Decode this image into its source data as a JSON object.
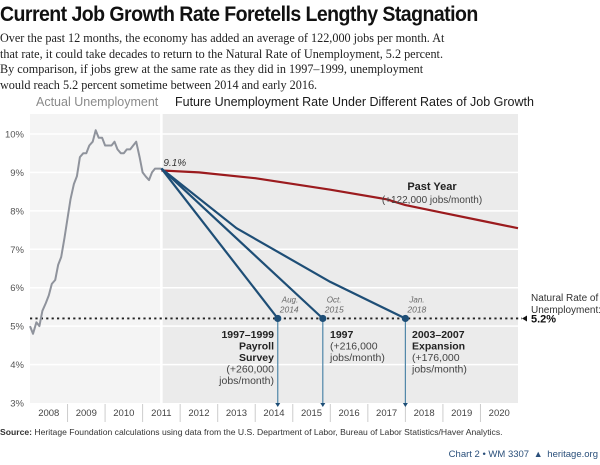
{
  "header": {
    "title": "Current Job Growth Rate Foretells Lengthy Stagnation",
    "subtitle": "Over the past 12 months, the economy has added an average of 122,000 jobs per month. At that rate, it could take decades to return to the Natural Rate of Unemployment, 5.2 percent. By comparison, if jobs grew at the same rate as they did in 1997–1999, unemployment would reach 5.2 percent sometime between 2014 and early 2016."
  },
  "footer": {
    "source_label": "Source:",
    "source_text": "Heritage Foundation calculations using data from the U.S. Department of Labor, Bureau of Labor Statistics/Haver Analytics.",
    "chart_id": "Chart 2 • WM 3307",
    "bell_icon": "liberty-bell-icon",
    "site": "heritage.org"
  },
  "colors": {
    "actual": "#8f939c",
    "past_year": "#9b1b1e",
    "scenarios": "#1e4e76",
    "marker_line": "#4f86a8",
    "panel_left": "#f4f4f4",
    "panel_right": "#ebebeb"
  },
  "chart_data": {
    "type": "line",
    "title": "Current Job Growth Rate Foretells Lengthy Stagnation",
    "panel_titles": [
      "Actual Unemployment",
      "Future Unemployment Rate Under Different Rates of Job Growth"
    ],
    "xlabel": "",
    "ylabel": "",
    "xlim": [
      2008,
      2021
    ],
    "ylim": [
      3,
      10.5
    ],
    "x_ticks": [
      "2008",
      "2009",
      "2010",
      "2011",
      "2012",
      "2013",
      "2014",
      "2015",
      "2016",
      "2017",
      "2018",
      "2019",
      "2020"
    ],
    "y_ticks": [
      3,
      4,
      5,
      6,
      7,
      8,
      9,
      10
    ],
    "y_tick_labels": [
      "3%",
      "4%",
      "5%",
      "6%",
      "7%",
      "8%",
      "9%",
      "10%"
    ],
    "grid": true,
    "projection_start": 2011.5,
    "start_label": "9.1%",
    "natural_rate": {
      "value": 5.2,
      "label_line1": "Natural Rate of",
      "label_line2": "Unemployment:",
      "value_label": "5.2%"
    },
    "series": [
      {
        "name": "Actual Unemployment",
        "x": [
          2008.0,
          2008.08,
          2008.17,
          2008.25,
          2008.33,
          2008.42,
          2008.5,
          2008.58,
          2008.67,
          2008.75,
          2008.83,
          2008.92,
          2009.0,
          2009.08,
          2009.17,
          2009.25,
          2009.33,
          2009.42,
          2009.5,
          2009.58,
          2009.67,
          2009.75,
          2009.83,
          2009.92,
          2010.0,
          2010.08,
          2010.17,
          2010.25,
          2010.33,
          2010.42,
          2010.5,
          2010.58,
          2010.67,
          2010.75,
          2010.83,
          2010.92,
          2011.0,
          2011.08,
          2011.17,
          2011.25,
          2011.33,
          2011.42,
          2011.5
        ],
        "values": [
          5.0,
          4.8,
          5.1,
          5.0,
          5.4,
          5.6,
          5.8,
          6.1,
          6.2,
          6.6,
          6.8,
          7.3,
          7.8,
          8.3,
          8.7,
          8.9,
          9.4,
          9.5,
          9.5,
          9.7,
          9.8,
          10.1,
          9.9,
          9.9,
          9.7,
          9.7,
          9.7,
          9.8,
          9.6,
          9.5,
          9.5,
          9.6,
          9.6,
          9.7,
          9.8,
          9.4,
          9.0,
          8.9,
          8.8,
          9.0,
          9.1,
          9.1,
          9.1
        ]
      },
      {
        "name": "Past Year",
        "label": "Past Year",
        "sublabel": "(+122,000 jobs/month)",
        "x": [
          2011.5,
          2012.5,
          2014.0,
          2016.0,
          2017.5,
          2018.0,
          2019.0,
          2020.0,
          2021.0
        ],
        "values": [
          9.05,
          9.0,
          8.85,
          8.55,
          8.3,
          8.15,
          7.95,
          7.75,
          7.55
        ]
      },
      {
        "name": "1997–1999 Payroll Survey",
        "label_lines": [
          "1997–1999",
          "Payroll",
          "Survey"
        ],
        "sublabel_lines": [
          "(+260,000",
          "jobs/month)"
        ],
        "x": [
          2011.5,
          2014.6
        ],
        "values": [
          9.1,
          5.2
        ],
        "reach_date_lines": [
          "Aug.",
          "2014"
        ]
      },
      {
        "name": "1997",
        "label_lines": [
          "1997"
        ],
        "sublabel_lines": [
          "(+216,000",
          "jobs/month)"
        ],
        "x": [
          2011.5,
          2015.8
        ],
        "values": [
          9.1,
          5.2
        ],
        "reach_date_lines": [
          "Oct.",
          "2015"
        ]
      },
      {
        "name": "2003–2007 Expansion",
        "label_lines": [
          "2003–2007",
          "Expansion"
        ],
        "sublabel_lines": [
          "(+176,000",
          "jobs/month)"
        ],
        "x": [
          2011.5,
          2013.5,
          2016.0,
          2018.0
        ],
        "values": [
          9.1,
          7.55,
          6.15,
          5.2
        ],
        "reach_date_lines": [
          "Jan.",
          "2018"
        ]
      }
    ]
  }
}
